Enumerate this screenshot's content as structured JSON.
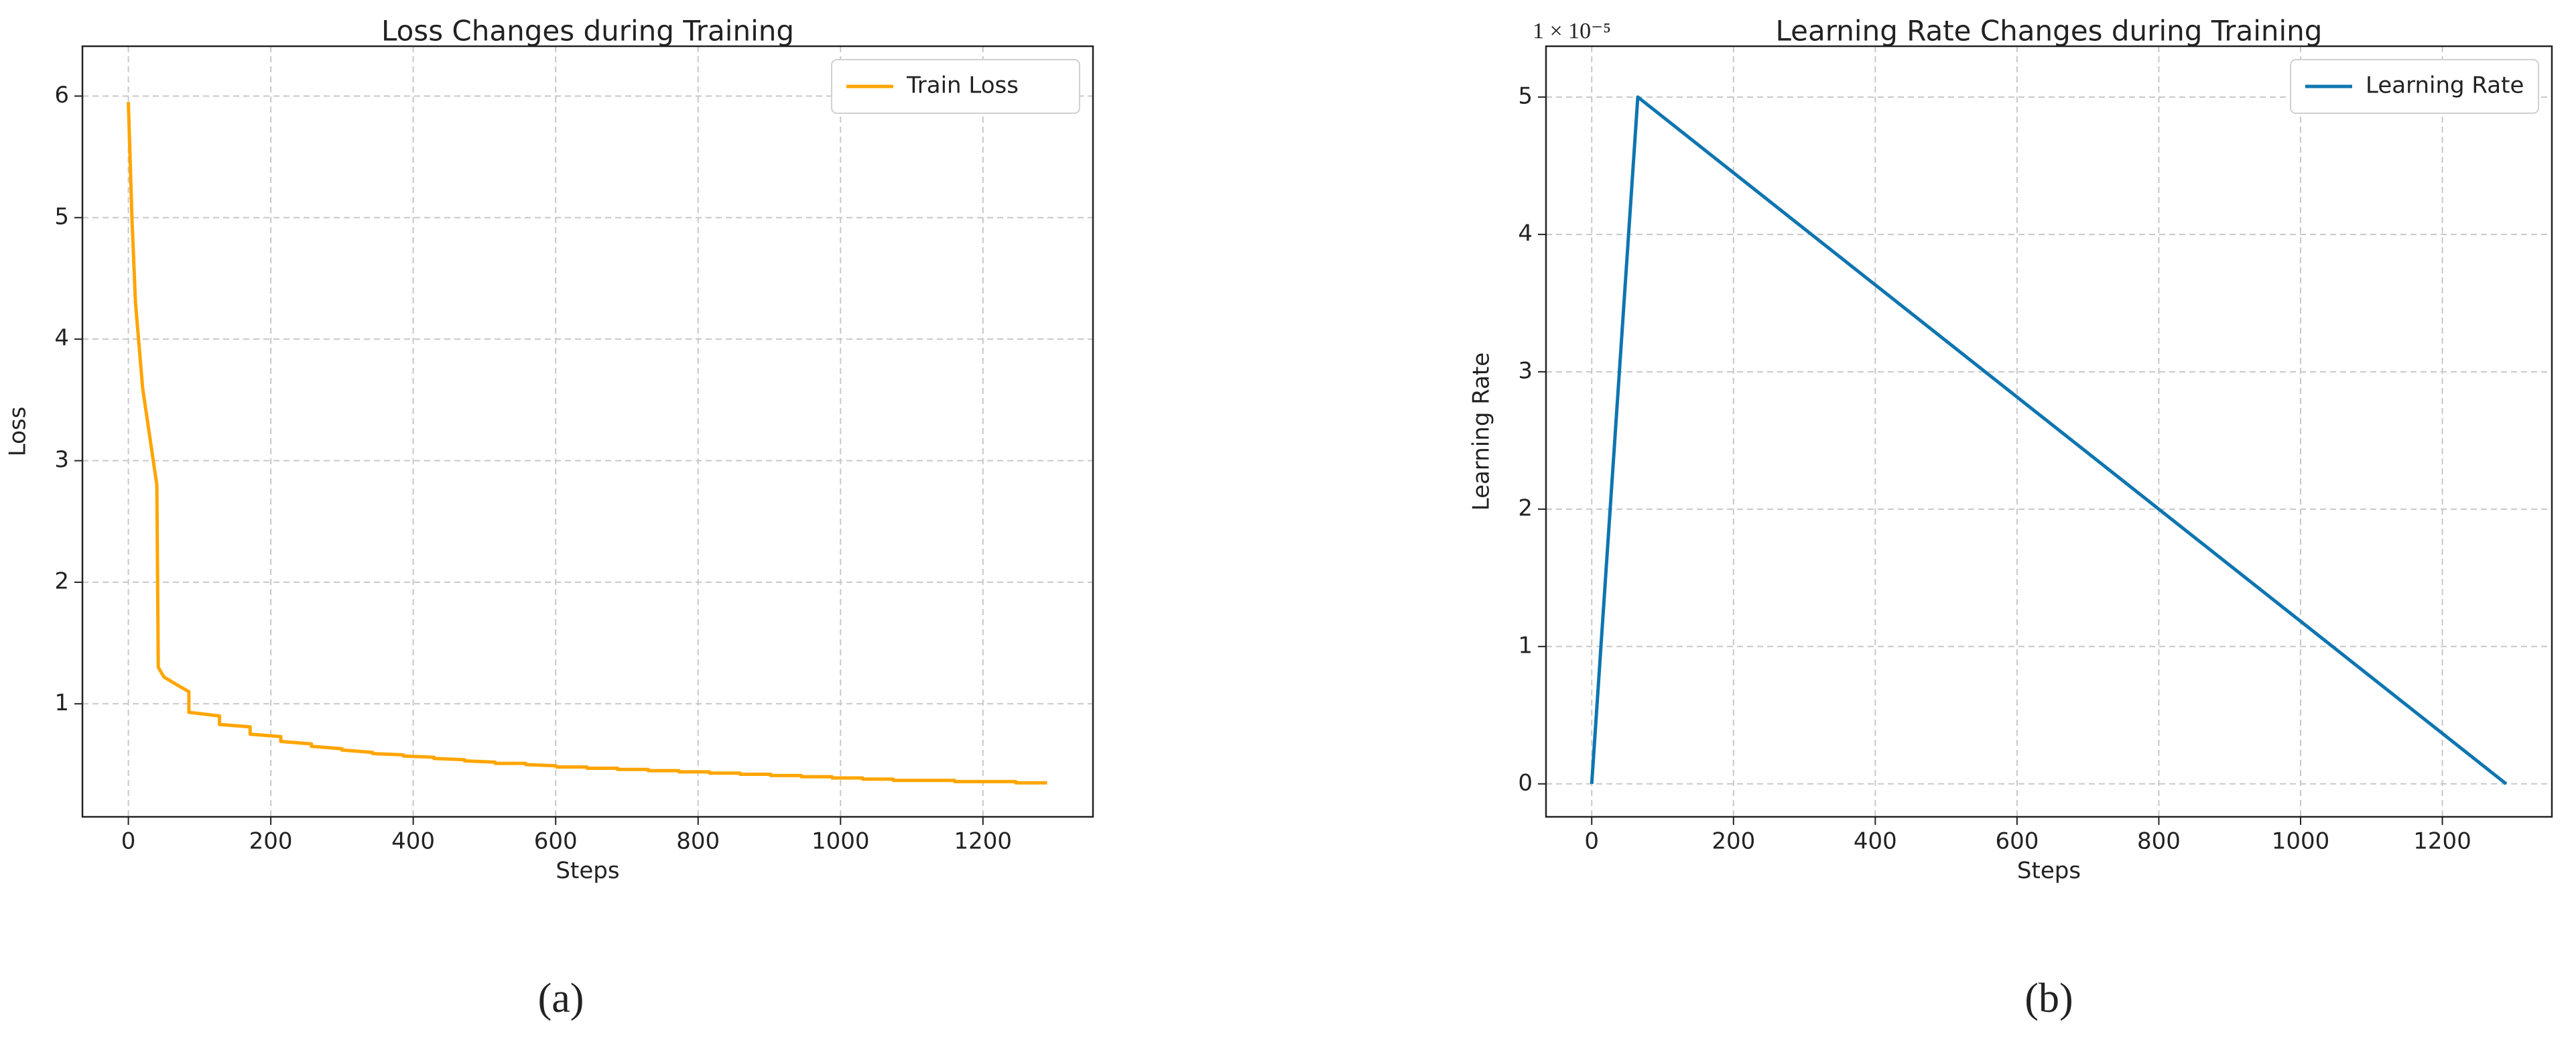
{
  "chart_data": [
    {
      "type": "line",
      "title": "Loss Changes during Training",
      "xlabel": "Steps",
      "ylabel": "Loss",
      "caption": "(a)",
      "x": [
        0,
        5,
        10,
        20,
        30,
        40,
        42,
        50,
        70,
        85,
        85,
        128,
        128,
        171,
        171,
        214,
        214,
        257,
        257,
        300,
        300,
        343,
        343,
        386,
        386,
        429,
        429,
        472,
        472,
        515,
        515,
        558,
        558,
        601,
        601,
        644,
        644,
        687,
        687,
        730,
        730,
        773,
        773,
        816,
        816,
        859,
        859,
        902,
        902,
        945,
        945,
        988,
        988,
        1031,
        1031,
        1074,
        1074,
        1117,
        1117,
        1160,
        1160,
        1203,
        1203,
        1246,
        1246,
        1290
      ],
      "series": [
        {
          "name": "Train Loss",
          "color": "#ffa500",
          "values": [
            5.95,
            5.0,
            4.3,
            3.6,
            3.2,
            2.8,
            1.3,
            1.22,
            1.15,
            1.1,
            0.93,
            0.9,
            0.83,
            0.81,
            0.75,
            0.73,
            0.69,
            0.67,
            0.65,
            0.63,
            0.62,
            0.6,
            0.59,
            0.58,
            0.57,
            0.56,
            0.55,
            0.54,
            0.53,
            0.52,
            0.51,
            0.51,
            0.5,
            0.49,
            0.48,
            0.48,
            0.47,
            0.47,
            0.46,
            0.46,
            0.45,
            0.45,
            0.44,
            0.44,
            0.43,
            0.43,
            0.42,
            0.42,
            0.41,
            0.41,
            0.4,
            0.4,
            0.39,
            0.39,
            0.38,
            0.38,
            0.37,
            0.37,
            0.37,
            0.37,
            0.36,
            0.36,
            0.36,
            0.36,
            0.35,
            0.35
          ]
        }
      ],
      "xlim": [
        -64.5,
        1354.5
      ],
      "xticks": [
        0,
        200,
        400,
        600,
        800,
        1000,
        1200
      ],
      "ylim": [
        0.07,
        6.41
      ],
      "yticks": [
        1,
        2,
        3,
        4,
        5,
        6
      ],
      "grid": true,
      "legend": "upper right"
    },
    {
      "type": "line",
      "title": "Learning Rate Changes during Training",
      "xlabel": "Steps",
      "ylabel": "Learning Rate",
      "caption": "(b)",
      "y_offset_label": "1 × 10⁻⁵",
      "x": [
        0,
        65,
        1290
      ],
      "series": [
        {
          "name": "Learning Rate",
          "color": "#0e75b0",
          "values": [
            0,
            5,
            0
          ]
        }
      ],
      "xlim": [
        -64.5,
        1354.5
      ],
      "xticks": [
        0,
        200,
        400,
        600,
        800,
        1000,
        1200
      ],
      "ylim": [
        -0.24,
        5.37
      ],
      "yticks": [
        0,
        1,
        2,
        3,
        4,
        5
      ],
      "grid": true,
      "legend": "upper right"
    }
  ]
}
